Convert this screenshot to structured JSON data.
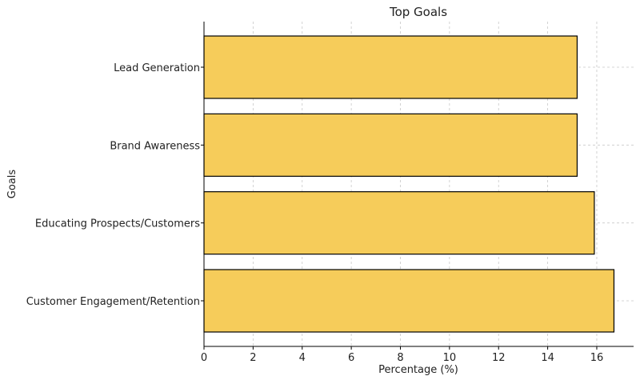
{
  "chart_data": {
    "type": "bar",
    "orientation": "horizontal",
    "title": "Top Goals",
    "xlabel": "Percentage (%)",
    "ylabel": "Goals",
    "categories": [
      "Customer Engagement/Retention",
      "Educating Prospects/Customers",
      "Brand Awareness",
      "Lead Generation"
    ],
    "values": [
      16.7,
      15.9,
      15.2,
      15.2
    ],
    "xlim": [
      0,
      17.5
    ],
    "xticks": [
      0,
      2,
      4,
      6,
      8,
      10,
      12,
      14,
      16
    ],
    "grid": true,
    "colors": {
      "bar_fill": "#f6cc5a",
      "bar_edge": "#000000",
      "grid": "#c8c8c8"
    }
  }
}
